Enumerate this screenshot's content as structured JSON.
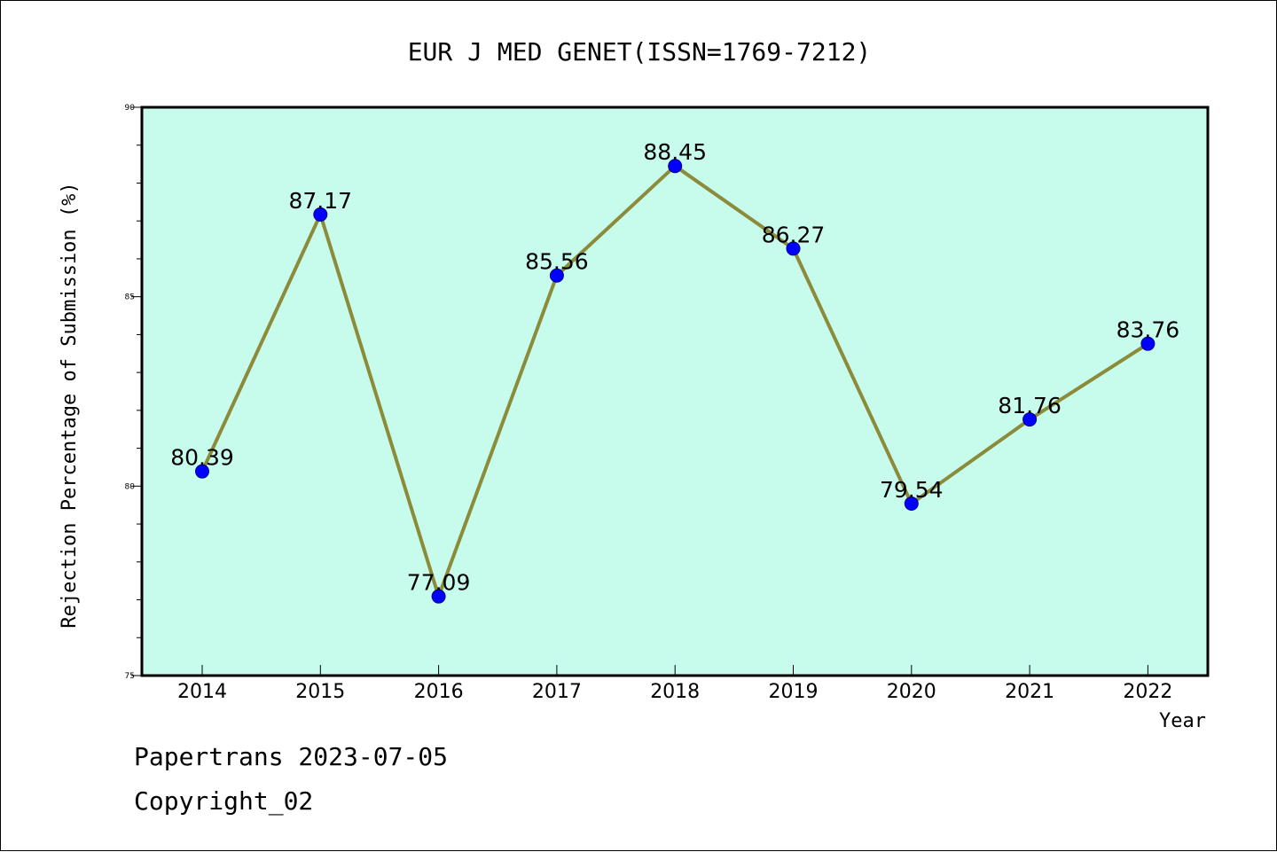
{
  "chart_data": {
    "type": "line",
    "title": "EUR J MED GENET(ISSN=1769-7212)",
    "xlabel": "Year",
    "ylabel": "Rejection Percentage of Submission (%)",
    "categories": [
      "2014",
      "2015",
      "2016",
      "2017",
      "2018",
      "2019",
      "2020",
      "2021",
      "2022"
    ],
    "series": [
      {
        "values": [
          80.39,
          87.17,
          77.09,
          85.56,
          88.45,
          86.27,
          79.54,
          81.76,
          83.76
        ],
        "labels": [
          "80.39",
          "87.17",
          "77.09",
          "85.56",
          "88.45",
          "86.27",
          "79.54",
          "81.76",
          "83.76"
        ]
      }
    ],
    "ylim": [
      75,
      90
    ],
    "yticks": [
      "75",
      "80",
      "85",
      "90"
    ],
    "grid": false,
    "colors": {
      "plot_background": "#c7fcec",
      "line": "#8b8b3a",
      "marker": "#0000ff"
    }
  },
  "footer": {
    "line1": "Papertrans 2023-07-05",
    "line2": "Copyright_02"
  }
}
